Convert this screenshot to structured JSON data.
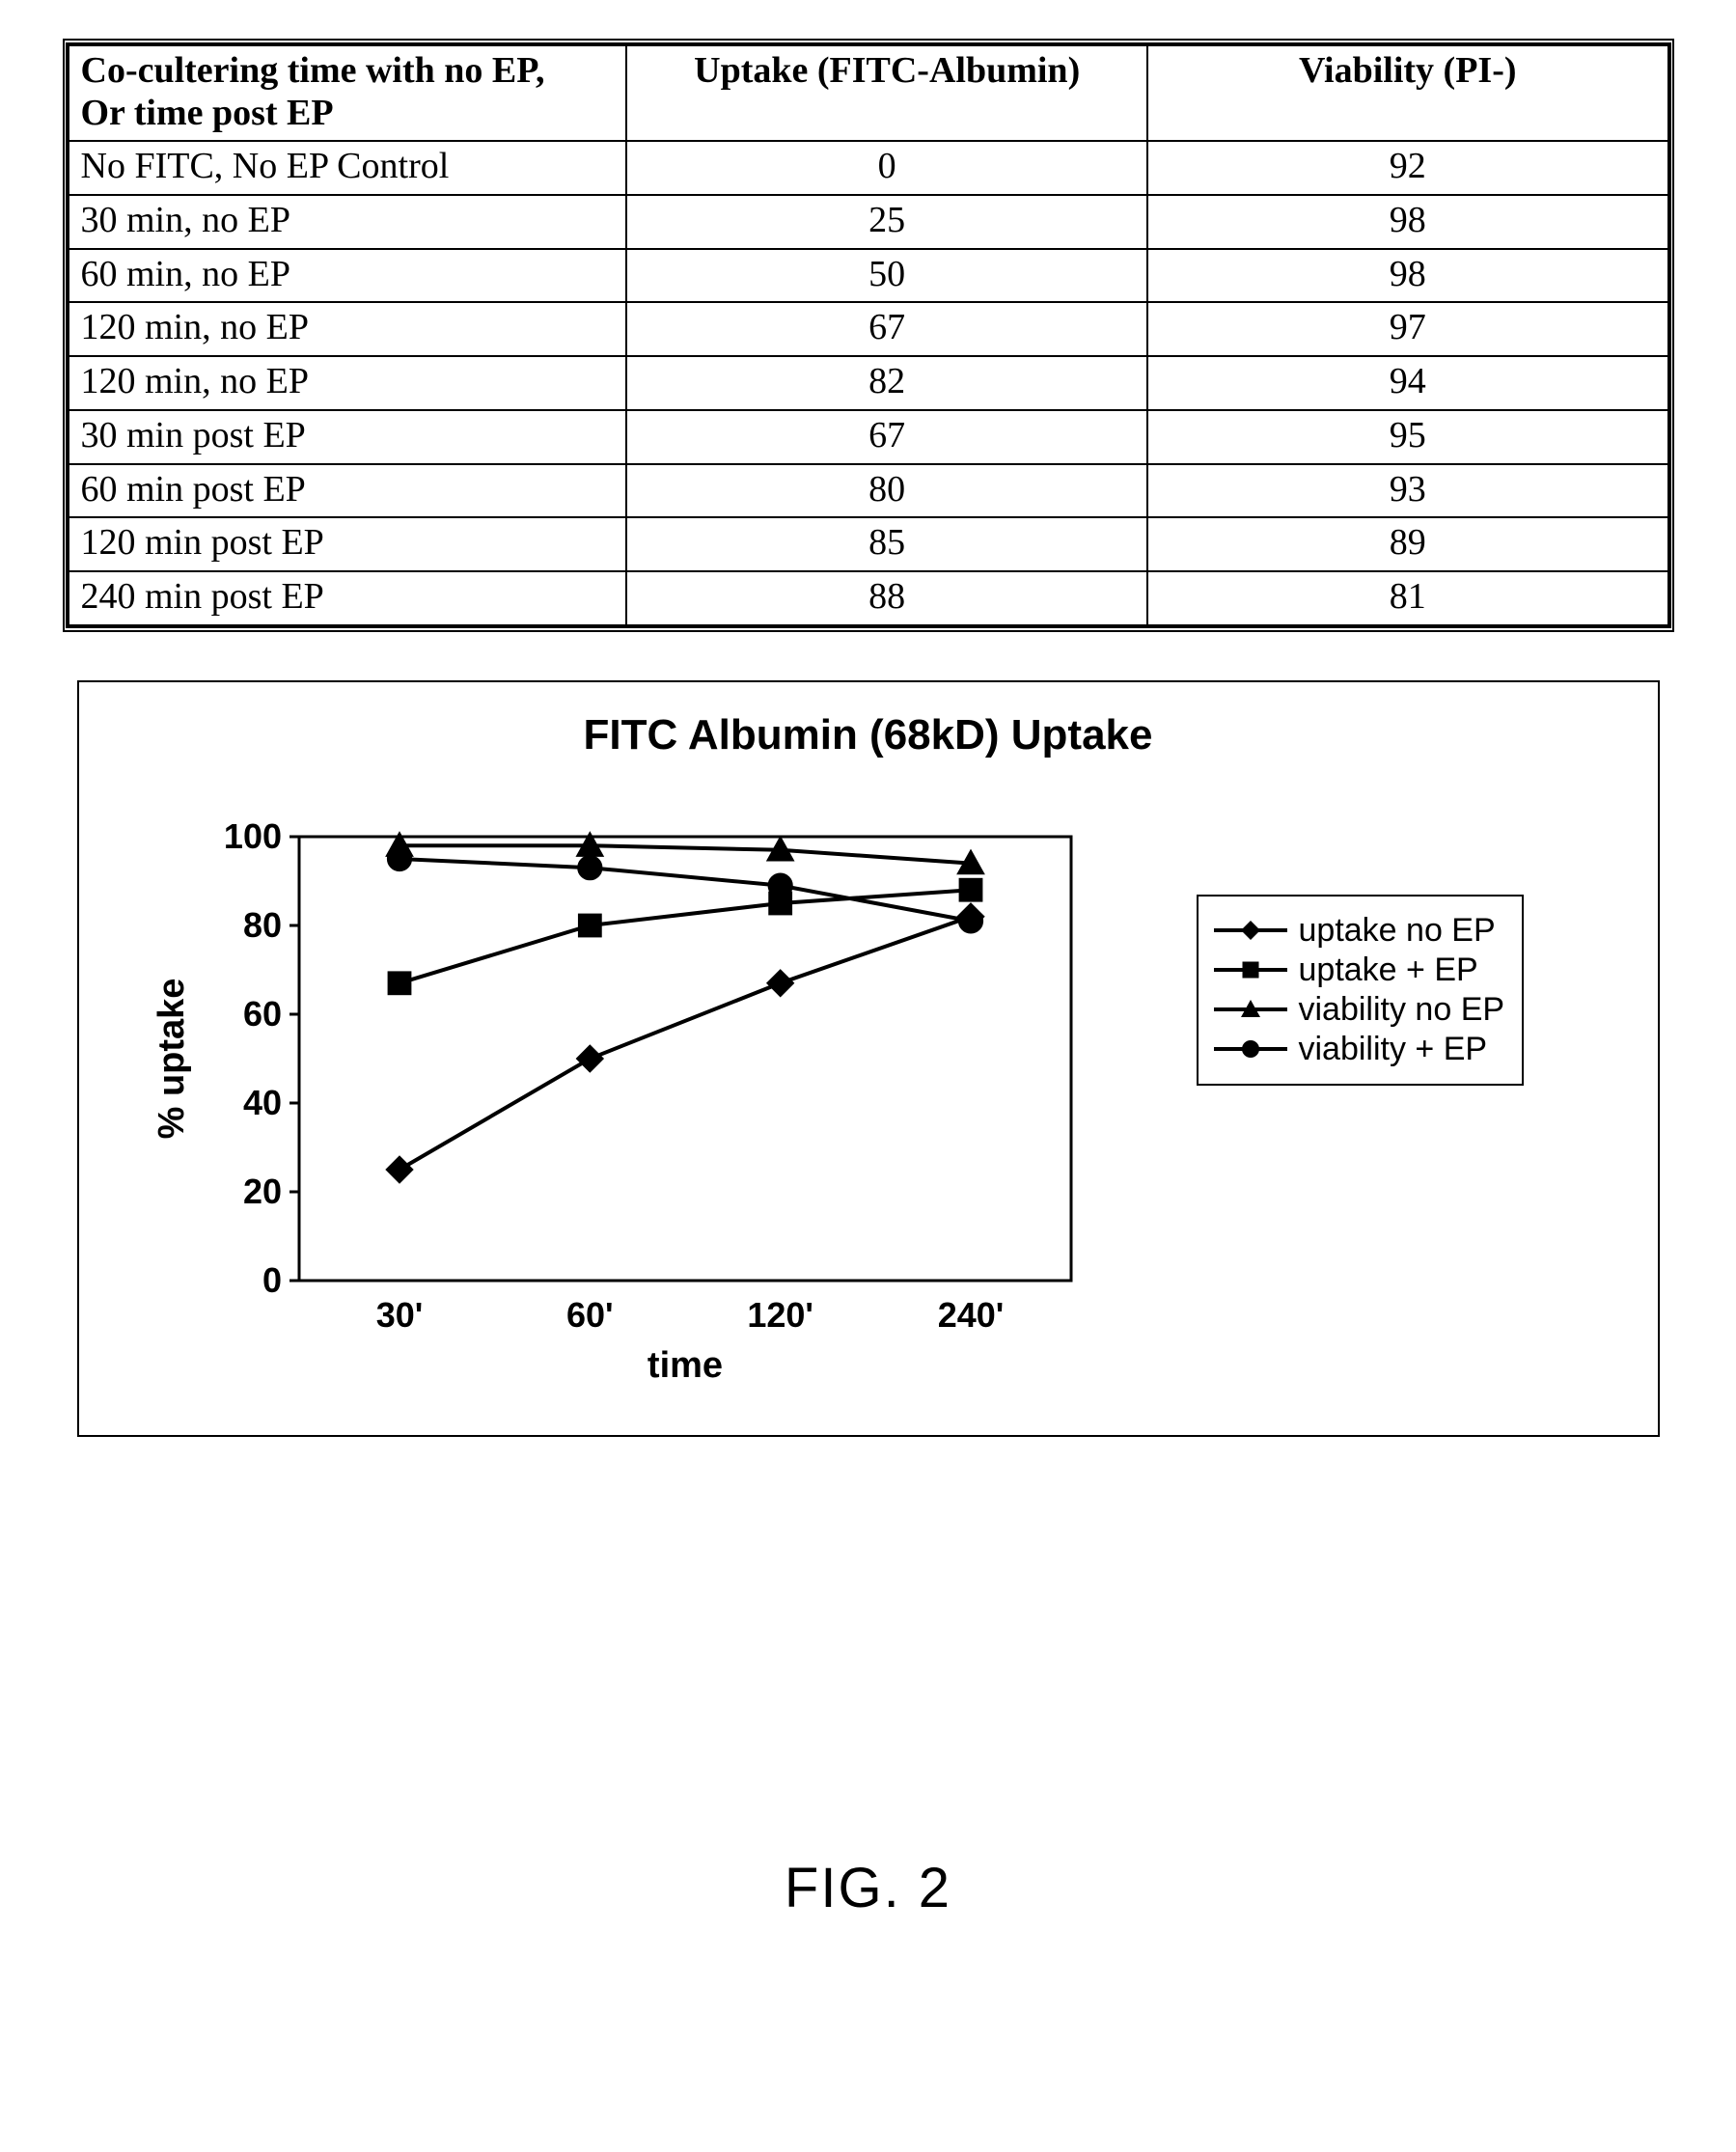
{
  "table": {
    "columns": [
      "Co-cultering time with no EP,\nOr time post EP",
      "Uptake (FITC-Albumin)",
      "Viability (PI-)"
    ],
    "col_align": [
      "left",
      "center",
      "center"
    ],
    "rows": [
      [
        "No FITC, No EP Control",
        "0",
        "92"
      ],
      [
        "30 min, no EP",
        "25",
        "98"
      ],
      [
        "60 min, no EP",
        "50",
        "98"
      ],
      [
        "120 min, no EP",
        "67",
        "97"
      ],
      [
        "120 min, no EP",
        "82",
        "94"
      ],
      [
        "30 min post EP",
        "67",
        "95"
      ],
      [
        "60 min post EP",
        "80",
        "93"
      ],
      [
        "120 min post EP",
        "85",
        "89"
      ],
      [
        "240 min post EP",
        "88",
        "81"
      ]
    ],
    "border_color": "#000000",
    "font_size": 38
  },
  "chart": {
    "type": "line",
    "title": "FITC Albumin (68kD) Uptake",
    "title_fontsize": 44,
    "xlabel": "time",
    "ylabel": "% uptake",
    "label_fontsize": 38,
    "tick_fontsize": 36,
    "x_categories": [
      "30'",
      "60'",
      "120'",
      "240'"
    ],
    "ylim": [
      0,
      100
    ],
    "ytick_step": 20,
    "line_color": "#000000",
    "line_width": 4,
    "marker_size": 14,
    "background_color": "#ffffff",
    "axis_color": "#000000",
    "series": [
      {
        "label": "uptake no EP",
        "marker": "diamond",
        "values": [
          25,
          50,
          67,
          82
        ]
      },
      {
        "label": "uptake + EP",
        "marker": "square",
        "values": [
          67,
          80,
          85,
          88
        ]
      },
      {
        "label": "viability no EP",
        "marker": "triangle",
        "values": [
          98,
          98,
          97,
          94
        ]
      },
      {
        "label": "viability + EP",
        "marker": "circle",
        "values": [
          95,
          93,
          89,
          81
        ]
      }
    ]
  },
  "caption": "FIG. 2"
}
